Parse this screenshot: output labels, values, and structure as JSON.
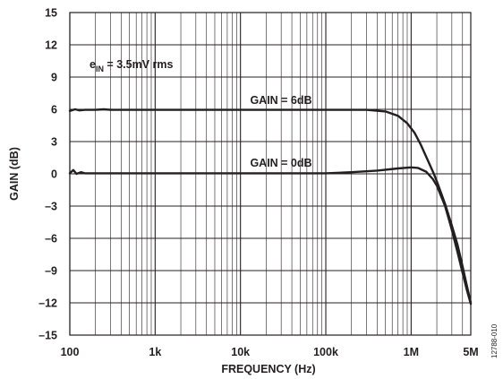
{
  "chart_data": {
    "type": "line",
    "xlabel": "FREQUENCY (Hz)",
    "ylabel": "GAIN (dB)",
    "xscale": "log",
    "xlim": [
      100,
      5000000
    ],
    "ylim": [
      -15,
      15
    ],
    "x_ticks": [
      100,
      1000,
      10000,
      100000,
      1000000,
      5000000
    ],
    "x_tick_labels": [
      "100",
      "1k",
      "10k",
      "100k",
      "1M",
      "5M"
    ],
    "y_ticks": [
      15,
      12,
      9,
      6,
      3,
      0,
      -3,
      -6,
      -9,
      -12,
      -15
    ],
    "y_tick_labels": [
      "15",
      "12",
      "9",
      "6",
      "3",
      "0",
      "–3",
      "–6",
      "–9",
      "–12",
      "–15"
    ],
    "grid": true,
    "annotations": [
      {
        "text_pre": "e",
        "text_sub": "IN",
        "text_post": " = 3.5mV rms"
      },
      {
        "text": "GAIN = 6dB"
      },
      {
        "text": "GAIN = 0dB"
      }
    ],
    "figure_id": "12788-010",
    "series": [
      {
        "points": [
          [
            100,
            5.85
          ],
          [
            115,
            6.0
          ],
          [
            130,
            5.9
          ],
          [
            150,
            5.95
          ],
          [
            200,
            5.95
          ],
          [
            250,
            6.0
          ],
          [
            300,
            5.95
          ],
          [
            500,
            5.95
          ],
          [
            1000,
            5.95
          ],
          [
            10000,
            5.95
          ],
          [
            100000,
            5.95
          ],
          [
            300000,
            5.95
          ],
          [
            500000,
            5.8
          ],
          [
            700000,
            5.4
          ],
          [
            900000,
            4.7
          ],
          [
            1100000,
            3.8
          ],
          [
            1300000,
            2.7
          ],
          [
            1500000,
            1.6
          ],
          [
            1800000,
            0.2
          ],
          [
            2000000,
            -0.7
          ],
          [
            2500000,
            -2.8
          ],
          [
            3000000,
            -4.8
          ],
          [
            3500000,
            -6.6
          ],
          [
            4000000,
            -8.6
          ],
          [
            4500000,
            -10.4
          ],
          [
            5000000,
            -12.0
          ]
        ]
      },
      {
        "points": [
          [
            100,
            0.05
          ],
          [
            110,
            0.35
          ],
          [
            120,
            0.0
          ],
          [
            135,
            0.15
          ],
          [
            150,
            0.05
          ],
          [
            200,
            0.05
          ],
          [
            300,
            0.05
          ],
          [
            1000,
            0.05
          ],
          [
            10000,
            0.05
          ],
          [
            100000,
            0.05
          ],
          [
            200000,
            0.15
          ],
          [
            400000,
            0.3
          ],
          [
            700000,
            0.5
          ],
          [
            1000000,
            0.6
          ],
          [
            1200000,
            0.55
          ],
          [
            1500000,
            0.2
          ],
          [
            1800000,
            -0.5
          ],
          [
            2000000,
            -1.1
          ],
          [
            2500000,
            -3.0
          ],
          [
            3000000,
            -5.2
          ],
          [
            3500000,
            -7.3
          ],
          [
            4000000,
            -9.2
          ],
          [
            4500000,
            -10.8
          ],
          [
            5000000,
            -12.1
          ]
        ]
      }
    ]
  }
}
